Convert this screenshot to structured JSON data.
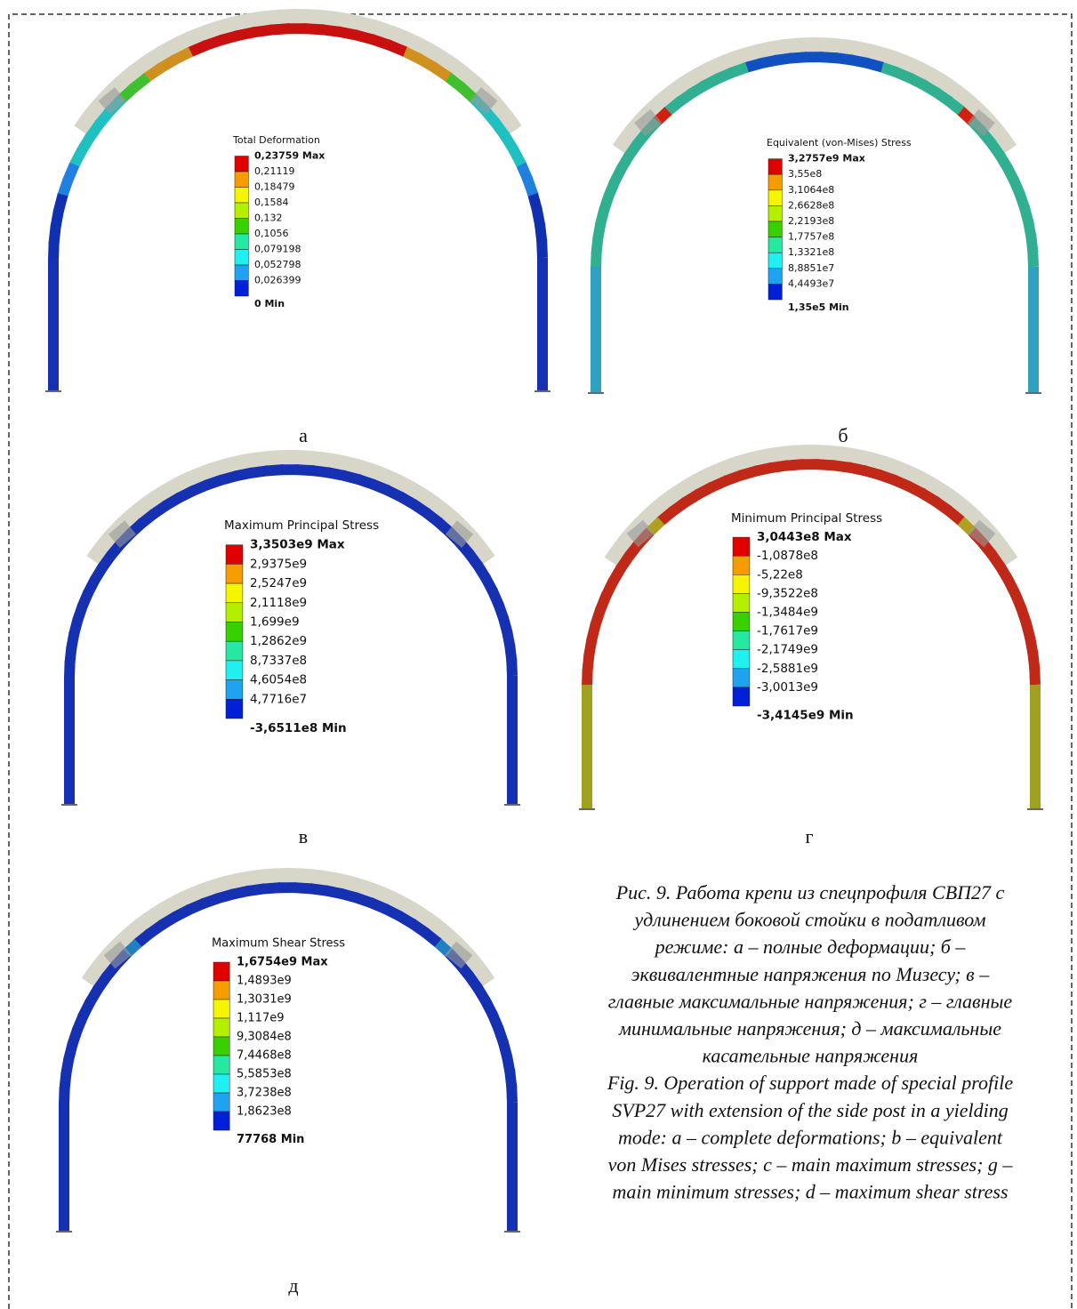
{
  "panels": [
    {
      "label": "а",
      "legend": {
        "title": "Total Deformation",
        "labels": [
          "0,23759 Max",
          "0,21119",
          "0,18479",
          "0,1584",
          "0,132",
          "0,1056",
          "0,079198",
          "0,052798",
          "0,026399",
          "0 Min"
        ]
      }
    },
    {
      "label": "б",
      "legend": {
        "title": "Equivalent (von-Mises) Stress",
        "labels": [
          "3,2757e9 Max",
          "3,55e8",
          "3,1064e8",
          "2,6628e8",
          "2,2193e8",
          "1,7757e8",
          "1,3321e8",
          "8,8851e7",
          "4,4493e7",
          "1,35e5 Min"
        ]
      }
    },
    {
      "label": "в",
      "legend": {
        "title": "Maximum Principal Stress",
        "labels": [
          "3,3503e9 Max",
          "2,9375e9",
          "2,5247e9",
          "2,1118e9",
          "1,699e9",
          "1,2862e9",
          "8,7337e8",
          "4,6054e8",
          "4,7716e7",
          "-3,6511e8 Min"
        ]
      }
    },
    {
      "label": "г",
      "legend": {
        "title": "Minimum Principal Stress",
        "labels": [
          "3,0443e8 Max",
          "-1,0878e8",
          "-5,22e8",
          "-9,3522e8",
          "-1,3484e9",
          "-1,7617e9",
          "-2,1749e9",
          "-2,5881e9",
          "-3,0013e9",
          "-3,4145e9 Min"
        ]
      }
    },
    {
      "label": "д",
      "legend": {
        "title": "Maximum Shear Stress",
        "labels": [
          "1,6754e9 Max",
          "1,4893e9",
          "1,3031e9",
          "1,117e9",
          "9,3084e8",
          "7,4468e8",
          "5,5853e8",
          "3,7238e8",
          "1,8623e8",
          "77768 Min"
        ]
      }
    }
  ],
  "caption": {
    "lines": [
      "Рис. 9. Работа крепи из спецпрофиля СВП27 с",
      "удлинением боковой стойки в податливом",
      "режиме: а – полные деформации; б –",
      "эквивалентные напряжения по Мизесу; в –",
      "главные максимальные напряжения; г – главные",
      "минимальные напряжения; д – максимальные",
      "касательные напряжения",
      "Fig. 9. Operation of support made of special profile",
      "SVP27 with extension of the side post in a yielding",
      "mode: a – complete deformations; b – equivalent",
      "von Mises stresses; c – main maximum stresses; g –",
      "main minimum stresses; d – maximum shear stress"
    ]
  }
}
